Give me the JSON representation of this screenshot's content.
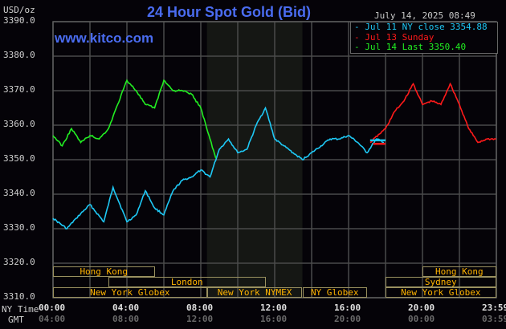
{
  "header": {
    "title": "24 Hour Spot Gold (Bid)",
    "site": "www.kitco.com",
    "unit": "USD/oz",
    "datetime": "July 14, 2025 08:49"
  },
  "legend": [
    {
      "label": "Jul 11 NY close 3354.88",
      "color": "#1ec8f5"
    },
    {
      "label": "Jul 13 Sunday",
      "color": "#ff1a1a"
    },
    {
      "label": "Jul 14 Last 3350.40",
      "color": "#22ee22"
    }
  ],
  "axes": {
    "y_ticks": [
      "3390.0",
      "3380.0",
      "3370.0",
      "3360.0",
      "3350.0",
      "3340.0",
      "3330.0",
      "3320.0",
      "3310.0"
    ],
    "x_row_label_ny": "NY Time",
    "x_row_label_gmt": "GMT",
    "x_ticks_ny": [
      "00:00",
      "04:00",
      "08:00",
      "12:00",
      "16:00",
      "20:00",
      "23:59"
    ],
    "x_ticks_gmt": [
      "04:00",
      "08:00",
      "12:00",
      "16:00",
      "20:00",
      "00:00",
      "03:59"
    ]
  },
  "sessions": [
    {
      "label": "Hong Kong",
      "row": 0,
      "start": "00:00",
      "end": "05:30"
    },
    {
      "label": "London",
      "row": 1,
      "start": "03:00",
      "end": "11:30"
    },
    {
      "label": "New York Globex",
      "row": 2,
      "start": "00:00",
      "end": "08:20"
    },
    {
      "label": "New York NYMEX",
      "row": 2,
      "start": "08:20",
      "end": "13:30"
    },
    {
      "label": "NY Globex",
      "row": 2,
      "start": "13:30",
      "end": "17:00"
    },
    {
      "label": "Hong Kong",
      "row": 0,
      "start": "20:00",
      "end": "23:59"
    },
    {
      "label": "Sydney",
      "row": 1,
      "start": "18:00",
      "end": "23:59"
    },
    {
      "label": "New York Globex",
      "row": 2,
      "start": "18:00",
      "end": "23:59"
    }
  ],
  "chart_data": {
    "type": "line",
    "title": "24 Hour Spot Gold (Bid)",
    "xlabel": "NY Time",
    "ylabel": "USD/oz",
    "ylim": [
      3310,
      3390
    ],
    "xlim": [
      "00:00",
      "23:59"
    ],
    "grid": true,
    "legend_position": "top-right",
    "shaded_region": {
      "start": "08:20",
      "end": "13:30",
      "label": "New York NYMEX"
    },
    "series": [
      {
        "name": "Jul 11 NY close 3354.88",
        "color": "#1ec8f5",
        "x": [
          "00:00",
          "00:45",
          "01:15",
          "02:00",
          "02:45",
          "03:15",
          "04:00",
          "04:30",
          "05:00",
          "05:30",
          "06:00",
          "06:30",
          "07:00",
          "07:30",
          "08:00",
          "08:30",
          "09:00",
          "09:30",
          "10:00",
          "10:30",
          "11:00",
          "11:30",
          "12:00",
          "12:30",
          "13:00",
          "13:30",
          "14:00",
          "14:30",
          "15:00",
          "15:30",
          "16:00",
          "16:30",
          "17:00",
          "17:30",
          "17:55"
        ],
        "values": [
          3333,
          3330,
          3333,
          3337,
          3332,
          3342,
          3332,
          3334,
          3341,
          3336,
          3334,
          3341,
          3344,
          3345,
          3347,
          3345,
          3353,
          3356,
          3352,
          3353,
          3360,
          3365,
          3356,
          3354,
          3352,
          3350,
          3352,
          3354,
          3356,
          3356,
          3357,
          3355,
          3352,
          3356,
          3355
        ]
      },
      {
        "name": "Jul 13 Sunday",
        "color": "#ff1a1a",
        "x": [
          "17:10",
          "18:00",
          "18:30",
          "19:00",
          "19:30",
          "20:00",
          "20:30",
          "21:00",
          "21:30",
          "22:00",
          "22:30",
          "23:00",
          "23:30",
          "23:59"
        ],
        "values": [
          3355,
          3359,
          3364,
          3367,
          3372,
          3366,
          3367,
          3366,
          3372,
          3366,
          3359,
          3355,
          3356,
          3356
        ]
      },
      {
        "name": "Jul 14 Last 3350.40",
        "color": "#22ee22",
        "x": [
          "00:00",
          "00:30",
          "01:00",
          "01:30",
          "02:00",
          "02:30",
          "03:00",
          "03:30",
          "04:00",
          "04:30",
          "05:00",
          "05:30",
          "06:00",
          "06:30",
          "07:00",
          "07:30",
          "08:00",
          "08:30",
          "08:49"
        ],
        "values": [
          3357,
          3354,
          3359,
          3355,
          3357,
          3356,
          3359,
          3366,
          3373,
          3370,
          3366,
          3365,
          3373,
          3370,
          3370,
          3369,
          3365,
          3356,
          3350.4
        ]
      }
    ]
  }
}
